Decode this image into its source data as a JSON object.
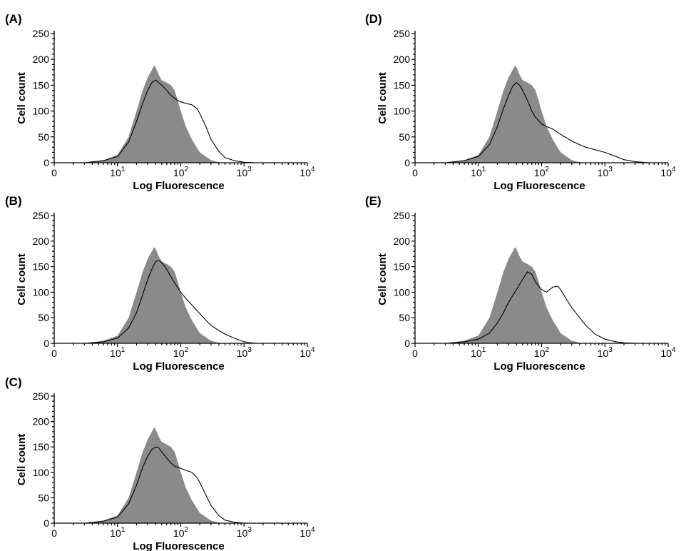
{
  "chart_data": [
    {
      "type": "area",
      "panel": "(A)",
      "xlabel": "Log Fluorescence",
      "ylabel": "Cell count",
      "ylim": [
        0,
        250
      ],
      "xlim": [
        1,
        10000
      ],
      "x_scale": "log",
      "y_ticks": [
        "0",
        "50",
        "100",
        "150",
        "200",
        "250"
      ],
      "x_ticks": [
        {
          "base": "0",
          "exp": ""
        },
        {
          "base": "10",
          "exp": "1"
        },
        {
          "base": "10",
          "exp": "2"
        },
        {
          "base": "10",
          "exp": "3"
        },
        {
          "base": "10",
          "exp": "4"
        }
      ],
      "series": [
        {
          "style": "filled-gray",
          "x": [
            3,
            6,
            10,
            15,
            20,
            25,
            30,
            35,
            38,
            40,
            45,
            50,
            60,
            70,
            80,
            90,
            100,
            120,
            150,
            200,
            300,
            400,
            500
          ],
          "y": [
            0,
            5,
            15,
            50,
            100,
            140,
            165,
            180,
            188,
            185,
            170,
            160,
            155,
            150,
            140,
            120,
            100,
            70,
            45,
            20,
            5,
            1,
            0
          ]
        },
        {
          "style": "black-outline",
          "x": [
            3,
            6,
            10,
            15,
            20,
            25,
            30,
            35,
            40,
            45,
            50,
            60,
            70,
            80,
            90,
            100,
            120,
            150,
            180,
            200,
            250,
            300,
            400,
            500,
            700,
            1000,
            1500
          ],
          "y": [
            0,
            4,
            12,
            40,
            80,
            115,
            140,
            155,
            160,
            155,
            150,
            140,
            130,
            125,
            120,
            118,
            115,
            112,
            105,
            95,
            70,
            45,
            22,
            10,
            4,
            1,
            0
          ]
        }
      ]
    },
    {
      "type": "area",
      "panel": "(B)",
      "xlabel": "Log Fluorescence",
      "ylabel": "Cell count",
      "ylim": [
        0,
        250
      ],
      "xlim": [
        1,
        10000
      ],
      "x_scale": "log",
      "y_ticks": [
        "0",
        "50",
        "100",
        "150",
        "200",
        "250"
      ],
      "x_ticks": [
        {
          "base": "0",
          "exp": ""
        },
        {
          "base": "10",
          "exp": "1"
        },
        {
          "base": "10",
          "exp": "2"
        },
        {
          "base": "10",
          "exp": "3"
        },
        {
          "base": "10",
          "exp": "4"
        }
      ],
      "series": [
        {
          "style": "filled-gray",
          "x": [
            3,
            6,
            10,
            15,
            20,
            25,
            30,
            35,
            38,
            40,
            45,
            50,
            60,
            70,
            80,
            90,
            100,
            120,
            150,
            200,
            300,
            400,
            500
          ],
          "y": [
            0,
            5,
            15,
            50,
            100,
            140,
            165,
            180,
            188,
            185,
            170,
            160,
            155,
            150,
            140,
            120,
            100,
            70,
            45,
            20,
            5,
            1,
            0
          ]
        },
        {
          "style": "black-outline",
          "x": [
            3,
            6,
            10,
            15,
            20,
            25,
            30,
            35,
            40,
            45,
            50,
            60,
            70,
            80,
            100,
            120,
            150,
            200,
            250,
            300,
            400,
            500,
            700,
            1000,
            1500
          ],
          "y": [
            0,
            3,
            10,
            30,
            60,
            95,
            125,
            145,
            160,
            162,
            158,
            145,
            130,
            118,
            100,
            88,
            75,
            58,
            45,
            35,
            25,
            18,
            10,
            3,
            0
          ]
        }
      ]
    },
    {
      "type": "area",
      "panel": "(C)",
      "xlabel": "Log Fluorescence",
      "ylabel": "Cell count",
      "ylim": [
        0,
        250
      ],
      "xlim": [
        1,
        10000
      ],
      "x_scale": "log",
      "y_ticks": [
        "0",
        "50",
        "100",
        "150",
        "200",
        "250"
      ],
      "x_ticks": [
        {
          "base": "0",
          "exp": ""
        },
        {
          "base": "10",
          "exp": "1"
        },
        {
          "base": "10",
          "exp": "2"
        },
        {
          "base": "10",
          "exp": "3"
        },
        {
          "base": "10",
          "exp": "4"
        }
      ],
      "series": [
        {
          "style": "filled-gray",
          "x": [
            3,
            6,
            10,
            15,
            20,
            25,
            30,
            35,
            38,
            40,
            45,
            50,
            60,
            70,
            80,
            90,
            100,
            120,
            150,
            200,
            300,
            400,
            500
          ],
          "y": [
            0,
            5,
            15,
            50,
            100,
            140,
            165,
            180,
            188,
            185,
            170,
            160,
            155,
            150,
            140,
            120,
            100,
            70,
            45,
            20,
            5,
            1,
            0
          ]
        },
        {
          "style": "black-outline",
          "x": [
            3,
            6,
            10,
            15,
            20,
            25,
            30,
            35,
            40,
            45,
            50,
            60,
            70,
            80,
            90,
            100,
            120,
            150,
            180,
            200,
            250,
            300,
            400,
            500,
            700,
            1000
          ],
          "y": [
            0,
            4,
            12,
            38,
            75,
            110,
            132,
            145,
            150,
            148,
            140,
            128,
            118,
            112,
            110,
            108,
            104,
            100,
            90,
            80,
            55,
            35,
            15,
            6,
            2,
            0
          ]
        }
      ]
    },
    {
      "type": "area",
      "panel": "(D)",
      "xlabel": "Log Fluorescence",
      "ylabel": "Cell count",
      "ylim": [
        0,
        250
      ],
      "xlim": [
        1,
        10000
      ],
      "x_scale": "log",
      "y_ticks": [
        "0",
        "50",
        "100",
        "150",
        "200",
        "250"
      ],
      "x_ticks": [
        {
          "base": "0",
          "exp": ""
        },
        {
          "base": "10",
          "exp": "1"
        },
        {
          "base": "10",
          "exp": "2"
        },
        {
          "base": "10",
          "exp": "3"
        },
        {
          "base": "10",
          "exp": "4"
        }
      ],
      "series": [
        {
          "style": "filled-gray",
          "x": [
            3,
            6,
            10,
            15,
            20,
            25,
            30,
            35,
            38,
            40,
            45,
            50,
            60,
            70,
            80,
            90,
            100,
            120,
            150,
            200,
            300,
            400,
            500
          ],
          "y": [
            0,
            5,
            15,
            50,
            100,
            140,
            165,
            180,
            188,
            185,
            170,
            160,
            155,
            150,
            140,
            120,
            100,
            70,
            45,
            20,
            5,
            1,
            0
          ]
        },
        {
          "style": "black-outline",
          "x": [
            3,
            6,
            10,
            15,
            20,
            25,
            30,
            35,
            40,
            45,
            50,
            60,
            70,
            80,
            100,
            120,
            150,
            200,
            300,
            400,
            500,
            700,
            1000,
            1500,
            2000,
            3000,
            5000
          ],
          "y": [
            0,
            4,
            12,
            35,
            70,
            105,
            130,
            148,
            155,
            150,
            140,
            120,
            100,
            88,
            75,
            70,
            65,
            55,
            42,
            35,
            30,
            25,
            20,
            12,
            6,
            2,
            0
          ]
        }
      ]
    },
    {
      "type": "area",
      "panel": "(E)",
      "xlabel": "Log Fluorescence",
      "ylabel": "Cell count",
      "ylim": [
        0,
        250
      ],
      "xlim": [
        1,
        10000
      ],
      "x_scale": "log",
      "y_ticks": [
        "0",
        "50",
        "100",
        "150",
        "200",
        "250"
      ],
      "x_ticks": [
        {
          "base": "0",
          "exp": ""
        },
        {
          "base": "10",
          "exp": "1"
        },
        {
          "base": "10",
          "exp": "2"
        },
        {
          "base": "10",
          "exp": "3"
        },
        {
          "base": "10",
          "exp": "4"
        }
      ],
      "series": [
        {
          "style": "filled-gray",
          "x": [
            3,
            6,
            10,
            15,
            20,
            25,
            30,
            35,
            38,
            40,
            45,
            50,
            60,
            70,
            80,
            90,
            100,
            120,
            150,
            200,
            300,
            400,
            500
          ],
          "y": [
            0,
            5,
            15,
            50,
            100,
            140,
            165,
            180,
            188,
            185,
            170,
            160,
            155,
            150,
            140,
            120,
            100,
            70,
            45,
            20,
            5,
            1,
            0
          ]
        },
        {
          "style": "black-outline",
          "x": [
            3,
            6,
            10,
            15,
            20,
            25,
            30,
            40,
            50,
            60,
            70,
            80,
            100,
            120,
            150,
            180,
            200,
            250,
            300,
            400,
            500,
            700,
            1000,
            1500,
            2000,
            3000
          ],
          "y": [
            0,
            3,
            8,
            20,
            40,
            60,
            80,
            105,
            125,
            140,
            135,
            120,
            105,
            100,
            110,
            112,
            105,
            85,
            70,
            50,
            35,
            18,
            8,
            3,
            1,
            0
          ]
        }
      ]
    }
  ]
}
